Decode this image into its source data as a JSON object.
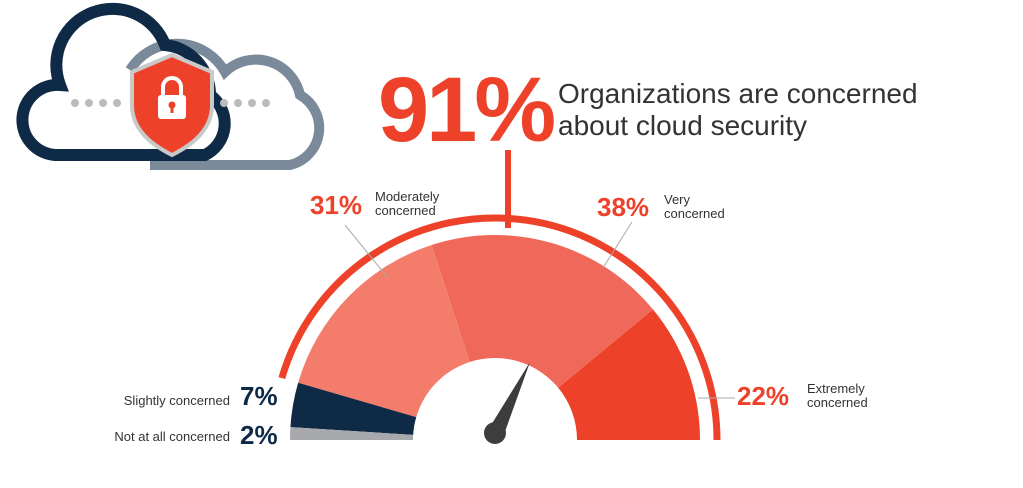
{
  "chart_data": {
    "type": "half-donut",
    "headline": {
      "value": 91,
      "label": "91%",
      "text": "Organizations are concerned about cloud security",
      "color": "#ee4129"
    },
    "categories": [
      "Not at all concerned",
      "Slightly concerned",
      "Moderately concerned",
      "Very concerned",
      "Extremely concerned"
    ],
    "values": [
      2,
      7,
      31,
      38,
      22
    ],
    "value_labels": [
      "2%",
      "7%",
      "31%",
      "38%",
      "22%"
    ],
    "colors": [
      "#a7a9ac",
      "#0f2a47",
      "#f47c6b",
      "#f0685a",
      "#ee4129"
    ],
    "label_colors": [
      "#0f2a47",
      "#0f2a47",
      "#ee4129",
      "#ee4129",
      "#ee4129"
    ]
  }
}
